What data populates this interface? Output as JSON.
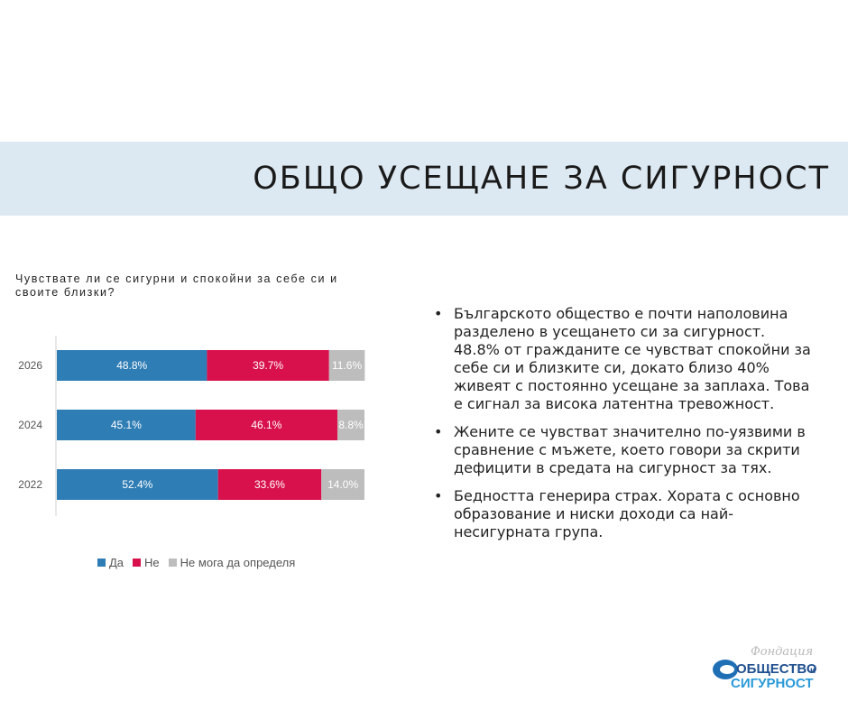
{
  "title": "ОБЩО УСЕЩАНЕ ЗА СИГУРНОСТ",
  "chart_data": {
    "type": "bar",
    "orientation": "horizontal",
    "stacked": true,
    "question": "Чувствате ли се сигурни и спокойни за себе си и своите близки?",
    "categories": [
      "2026",
      "2024",
      "2022"
    ],
    "series": [
      {
        "name": "Да",
        "color": "#2e7db5",
        "values": [
          48.8,
          45.1,
          52.4
        ],
        "labels": [
          "48.8%",
          "45.1%",
          "52.4%"
        ]
      },
      {
        "name": "Не",
        "color": "#d8114c",
        "values": [
          39.7,
          46.1,
          33.6
        ],
        "labels": [
          "39.7%",
          "46.1%",
          "33.6%"
        ]
      },
      {
        "name": "Не мога да определя",
        "color": "#bdbdbd",
        "values": [
          11.6,
          8.8,
          14.0
        ],
        "labels": [
          "11.6%",
          "8.8%",
          "14.0%"
        ]
      }
    ],
    "xlim": [
      0,
      100
    ],
    "legend_position": "bottom",
    "grid": false
  },
  "bullets": [
    "Българското общество е почти наполовина разделено в усещането си за сигурност. 48.8% от гражданите се чувстват спокойни за себе си и близките си, докато близо 40% живеят с постоянно усещане за заплаха. Това е сигнал за висока латентна тревожност.",
    "Жените се чувстват значително по-уязвими в сравнение с мъжете, което говори за скрити дефицити в средата на сигурност за тях.",
    "Бедността генерира страх. Хората с основно образование и ниски доходи са най-несигурната група."
  ],
  "logo": {
    "top": "Фондация",
    "main": "ОБЩЕСТВО",
    "conj": "и",
    "bottom": "СИГУРНОСТ"
  }
}
